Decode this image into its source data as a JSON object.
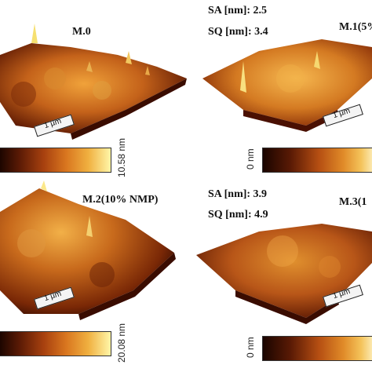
{
  "panels": {
    "m0": {
      "title": "M.0",
      "scale": "1 µm",
      "colorbar_max": "10.58 nm"
    },
    "m1": {
      "title": "M.1(5%",
      "scale": "1 µm",
      "colorbar_min": "0 nm",
      "sa": "SA [nm]: 2.5",
      "sq": "SQ [nm]: 3.4"
    },
    "m2": {
      "title": "M.2(10% NMP)",
      "scale": "1 µm",
      "colorbar_max": "20.08 nm"
    },
    "m3": {
      "title": "M.3(1",
      "scale": "1 µm",
      "colorbar_min": "0 nm",
      "sa": "SA [nm]: 3.9",
      "sq": "SQ [nm]: 4.9"
    }
  },
  "colors": {
    "low": "#1a0500",
    "mid": "#b54e12",
    "high": "#fff6a8"
  }
}
